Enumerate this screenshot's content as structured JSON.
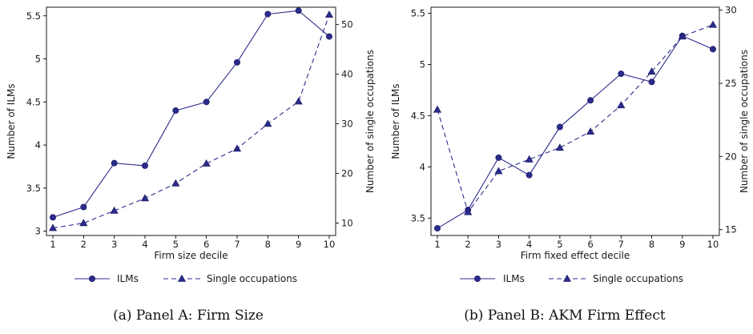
{
  "chart_data": [
    {
      "type": "line",
      "caption": "(a) Panel A: Firm Size",
      "xlabel": "Firm size decile",
      "ylabel_left": "Number of ILMs",
      "ylabel_right": "Number of single occupations",
      "x": [
        1,
        2,
        3,
        4,
        5,
        6,
        7,
        8,
        9,
        10
      ],
      "x_ticks": [
        "1",
        "2",
        "3",
        "4",
        "5",
        "6",
        "7",
        "8",
        "9",
        "10"
      ],
      "ylim_left": [
        2.95,
        5.6
      ],
      "ylim_right": [
        7.5,
        53.5
      ],
      "y_ticks_left": [
        "3",
        "3.5",
        "4",
        "4.5",
        "5",
        "5.5"
      ],
      "y_ticks_right": [
        "10",
        "20",
        "30",
        "40",
        "50"
      ],
      "grid": false,
      "legend_position": "bottom",
      "color": "#2b2b8c",
      "series": [
        {
          "name": "ILMs",
          "axis": "left",
          "marker": "circle",
          "line_style": "solid",
          "values": [
            3.16,
            3.28,
            3.79,
            3.76,
            4.4,
            4.5,
            4.96,
            5.52,
            5.56,
            5.26
          ]
        },
        {
          "name": "Single occupations",
          "axis": "right",
          "marker": "triangle",
          "line_style": "dashed",
          "values": [
            9.0,
            10.0,
            12.5,
            15.0,
            18.0,
            22.0,
            25.0,
            30.0,
            34.5,
            52.0
          ]
        }
      ]
    },
    {
      "type": "line",
      "caption": "(b) Panel B: AKM Firm Effect",
      "xlabel": "Firm fixed effect decile",
      "ylabel_left": "Number of ILMs",
      "ylabel_right": "Number of single occupations",
      "x": [
        1,
        2,
        3,
        4,
        5,
        6,
        7,
        8,
        9,
        10
      ],
      "x_ticks": [
        "1",
        "2",
        "3",
        "4",
        "5",
        "6",
        "7",
        "8",
        "9",
        "10"
      ],
      "ylim_left": [
        3.33,
        5.56
      ],
      "ylim_right": [
        14.6,
        30.2
      ],
      "y_ticks_left": [
        "3.5",
        "4",
        "4.5",
        "5",
        "5.5"
      ],
      "y_ticks_right": [
        "15",
        "20",
        "25",
        "30"
      ],
      "grid": false,
      "legend_position": "bottom",
      "color": "#2b2b8c",
      "series": [
        {
          "name": "ILMs",
          "axis": "left",
          "marker": "circle",
          "line_style": "solid",
          "values": [
            3.4,
            3.58,
            4.09,
            3.92,
            4.39,
            4.65,
            4.91,
            4.83,
            5.28,
            5.15
          ]
        },
        {
          "name": "Single occupations",
          "axis": "right",
          "marker": "triangle",
          "line_style": "dashed",
          "values": [
            23.2,
            16.2,
            19.0,
            19.8,
            20.6,
            21.7,
            23.5,
            25.8,
            28.2,
            29.0
          ]
        }
      ]
    }
  ]
}
